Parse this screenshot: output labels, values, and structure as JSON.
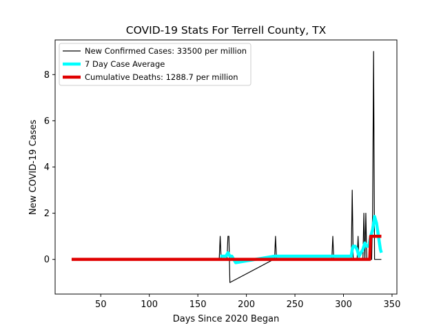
{
  "chart_data": {
    "type": "line",
    "title": "COVID-19 Stats For Terrell County, TX",
    "xlabel": "Days Since 2020 Began",
    "ylabel": "New COVID-19 Cases",
    "xlim": [
      3,
      355
    ],
    "ylim": [
      -1.5,
      9.5
    ],
    "xticks": [
      50,
      100,
      150,
      200,
      250,
      300,
      350
    ],
    "yticks": [
      0,
      2,
      4,
      6,
      8
    ],
    "grid": false,
    "legend_position": "top-left",
    "series": [
      {
        "name": "New Confirmed Cases: 33500 per million",
        "color": "#000000",
        "x": [
          20,
          172,
          173,
          174,
          180,
          181,
          182,
          183,
          228,
          229,
          230,
          231,
          287,
          288,
          289,
          290,
          307,
          308,
          309,
          310,
          314,
          315,
          316,
          320,
          321,
          322,
          323,
          324,
          325,
          329,
          330,
          331,
          332,
          333,
          339
        ],
        "y": [
          0,
          0,
          1,
          0,
          0,
          1,
          1,
          -1,
          0,
          0,
          1,
          0,
          0,
          0,
          1,
          0,
          0,
          0,
          3,
          0,
          0,
          1,
          0,
          0,
          2,
          0,
          2,
          0,
          0,
          0,
          2,
          9,
          0,
          0,
          0
        ]
      },
      {
        "name": "7 Day Case Average",
        "color": "#00ffff",
        "x": [
          173,
          175,
          177,
          179,
          181,
          183,
          185,
          187,
          189,
          229,
          231,
          233,
          235,
          236,
          289,
          291,
          293,
          295,
          308,
          309,
          310,
          312,
          314,
          316,
          318,
          320,
          322,
          324,
          326,
          328,
          330,
          331,
          332,
          333,
          334,
          336,
          338,
          339
        ],
        "y": [
          0.14,
          0.14,
          0.14,
          0.14,
          0.29,
          0.14,
          0.14,
          0.0,
          -0.14,
          0.14,
          0.14,
          0.14,
          0.14,
          0.14,
          0.14,
          0.14,
          0.14,
          0.14,
          0.14,
          0.43,
          0.57,
          0.57,
          0.43,
          0.14,
          0.29,
          0.43,
          0.71,
          0.57,
          0.57,
          1.0,
          1.29,
          1.57,
          1.86,
          1.71,
          1.57,
          1.0,
          0.43,
          0.29
        ]
      },
      {
        "name": "Cumulative Deaths: 1288.7 per million",
        "color": "#e00000",
        "x": [
          20,
          325,
          326,
          327,
          328,
          329,
          339
        ],
        "y": [
          0,
          0,
          0,
          0,
          1,
          1,
          1
        ]
      }
    ]
  }
}
